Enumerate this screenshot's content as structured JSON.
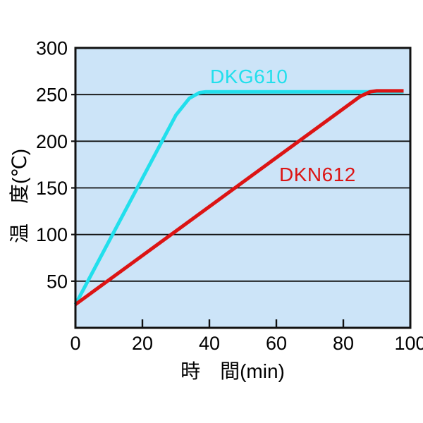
{
  "figure": {
    "background": "#ffffff",
    "plot_background": "#cce4f8",
    "axis_color": "#111111",
    "text_color": "#000000"
  },
  "chart_data": {
    "type": "line",
    "title": "",
    "xlabel": "時　間(min)",
    "ylabel": "温　度(℃)",
    "xlim": [
      0,
      100
    ],
    "ylim": [
      0,
      300
    ],
    "xticks": [
      0,
      20,
      40,
      60,
      80,
      100
    ],
    "yticks": [
      50,
      100,
      150,
      200,
      250,
      300
    ],
    "grid": "horizontal",
    "legend_position": "inline-labels",
    "series": [
      {
        "name": "DKG610",
        "color": "#22dfec",
        "points": [
          [
            0,
            25
          ],
          [
            30,
            228
          ],
          [
            34,
            246
          ],
          [
            37,
            252
          ],
          [
            39,
            253
          ],
          [
            98,
            253
          ]
        ],
        "description": "fast heat-up, reaches ~253C at ~37min then plateau"
      },
      {
        "name": "DKN612",
        "color": "#dc1414",
        "points": [
          [
            0,
            25
          ],
          [
            85,
            248
          ],
          [
            88,
            253
          ],
          [
            90,
            254
          ],
          [
            98,
            254
          ]
        ],
        "description": "slow heat-up, reaches ~254C at ~88min then plateau"
      }
    ]
  }
}
